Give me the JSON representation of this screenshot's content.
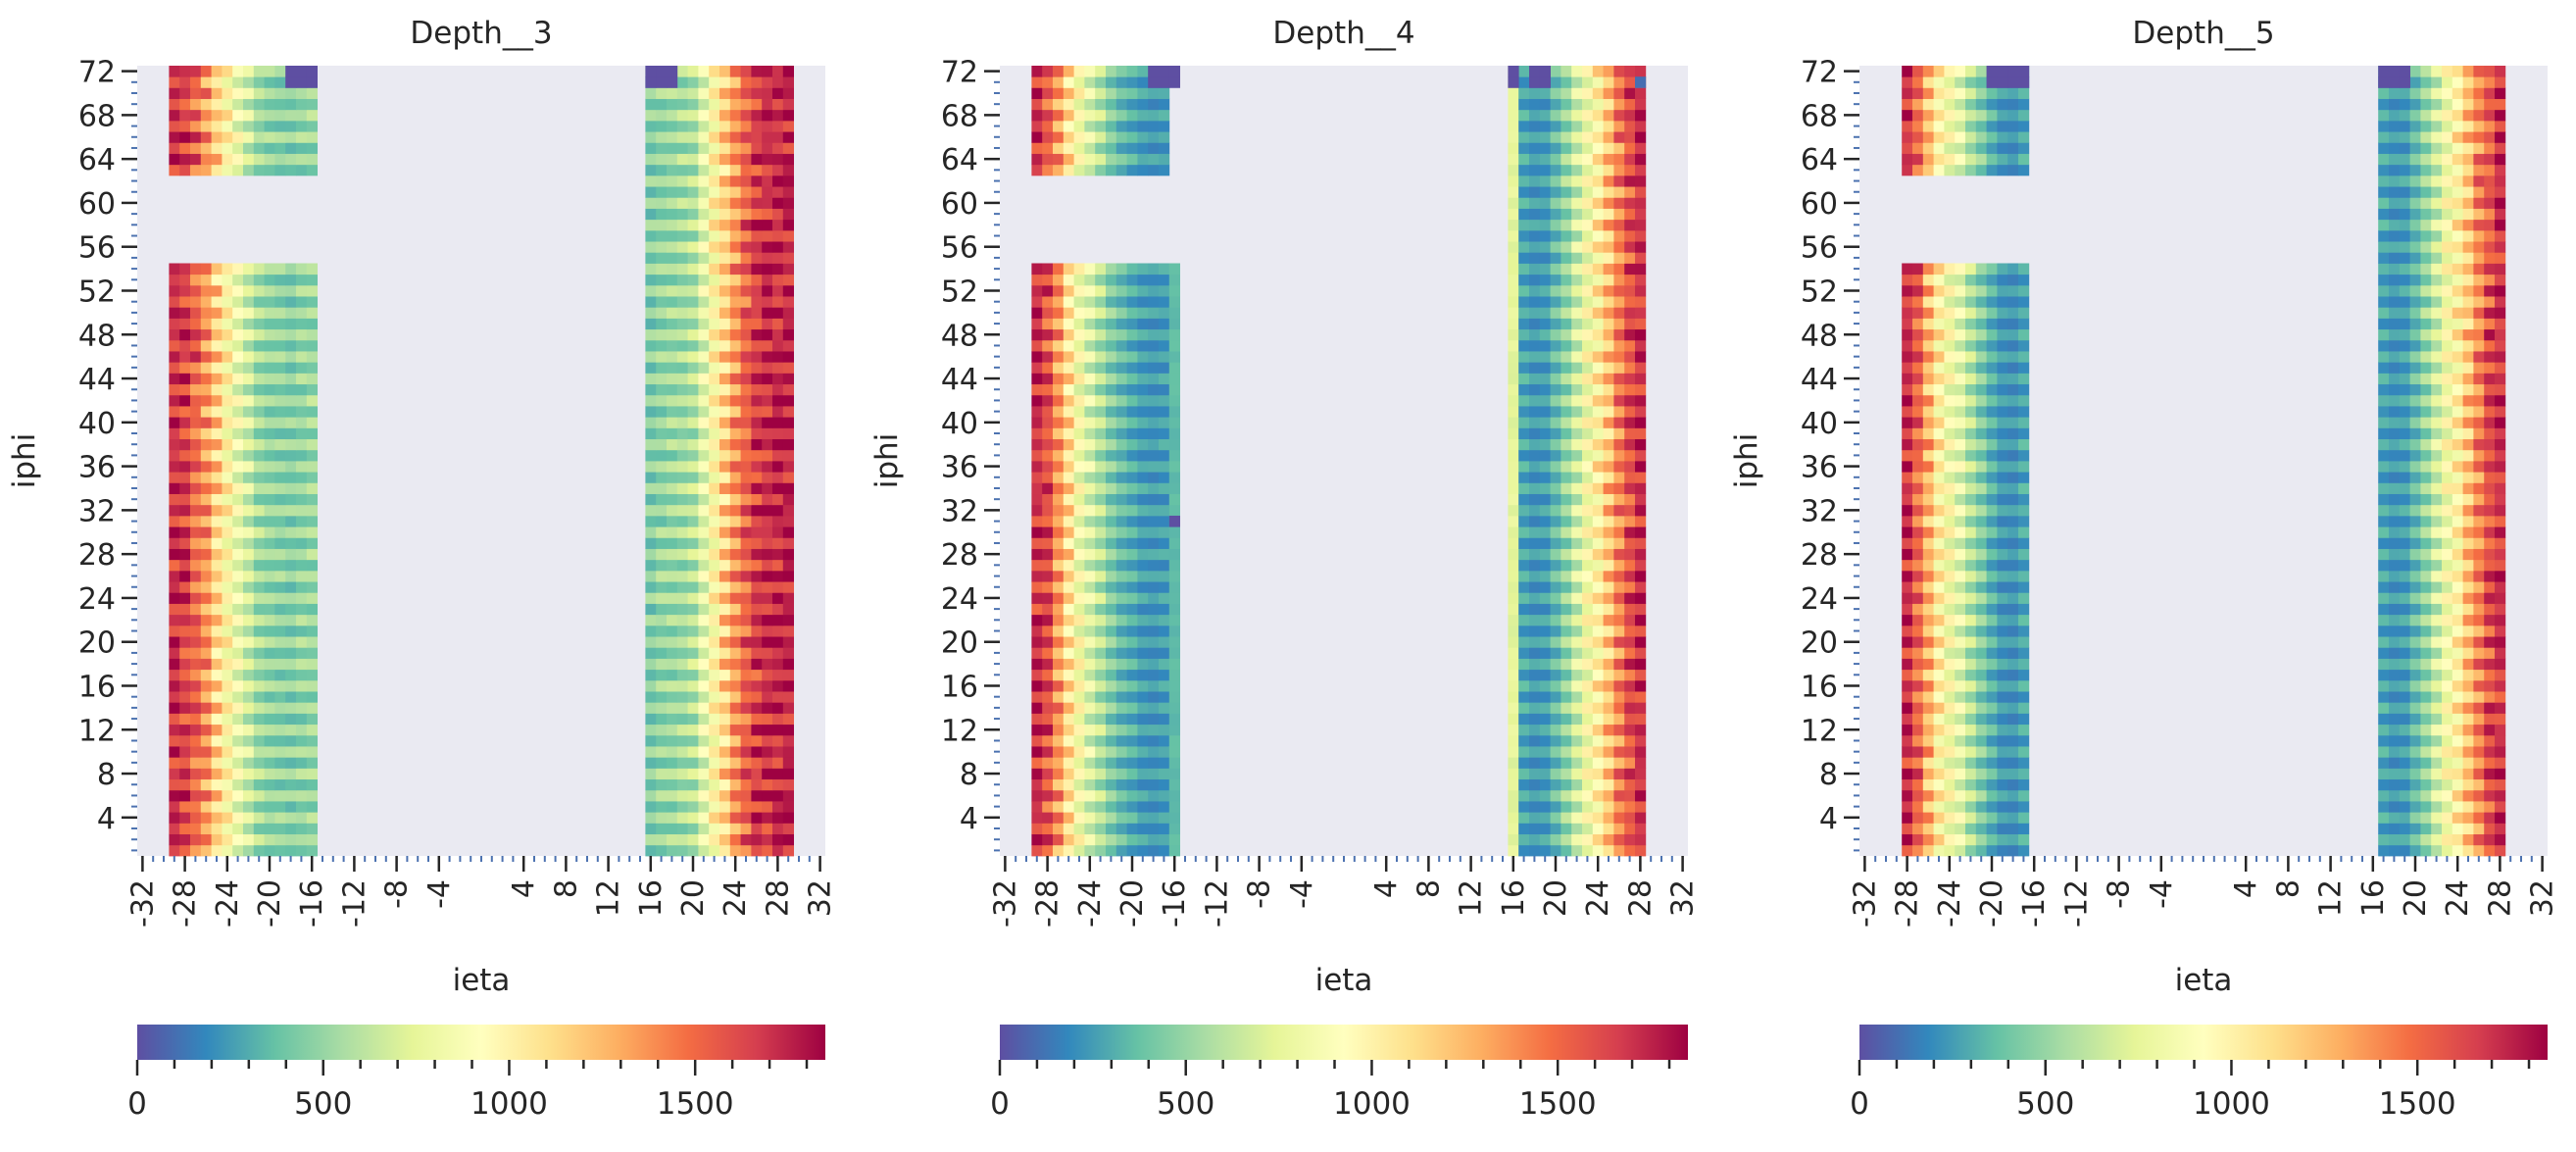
{
  "colors": {
    "background": "#eaeaf2",
    "colormap": [
      "#5e4fa2",
      "#3288bd",
      "#66c2a5",
      "#abdda4",
      "#e6f598",
      "#ffffbf",
      "#fee08b",
      "#fdae61",
      "#f46d43",
      "#d53e4f",
      "#9e0142"
    ]
  },
  "chart_data": [
    {
      "type": "heatmap",
      "title": "Depth__3",
      "xlabel": "ieta",
      "ylabel": "iphi",
      "x_ticks": [
        "-32",
        "-28",
        "-24",
        "-20",
        "-16",
        "-12",
        "-8",
        "-4",
        "4",
        "8",
        "12",
        "16",
        "20",
        "24",
        "28",
        "32"
      ],
      "y_ticks": [
        "72",
        "68",
        "64",
        "60",
        "56",
        "52",
        "48",
        "44",
        "40",
        "36",
        "32",
        "28",
        "24",
        "20",
        "16",
        "12",
        "8",
        "4"
      ],
      "ieta_range": [
        -32,
        32
      ],
      "iphi_range": [
        1,
        72
      ],
      "colorbar": {
        "range": [
          0,
          1850
        ],
        "ticks": [
          "0",
          "500",
          "1000",
          "1500"
        ]
      },
      "regions": [
        {
          "side": "minus",
          "ieta_from": -29,
          "ieta_to": -16,
          "iphi_from": 1,
          "iphi_to": 54,
          "profile": [
            1800,
            1750,
            1650,
            1500,
            1300,
            1100,
            950,
            800,
            650,
            600,
            580,
            560,
            600,
            620
          ],
          "odd_rows_empty": true
        },
        {
          "side": "minus",
          "ieta_from": -29,
          "ieta_to": -16,
          "iphi_from": 63,
          "iphi_to": 72,
          "profile": [
            1800,
            1750,
            1650,
            1500,
            1300,
            1100,
            950,
            800,
            650,
            600,
            580,
            560,
            600,
            620
          ],
          "odd_rows_empty": true
        },
        {
          "side": "plus",
          "ieta_from": 16,
          "ieta_to": 29,
          "iphi_from": 1,
          "iphi_to": 72,
          "profile": [
            550,
            600,
            620,
            650,
            700,
            900,
            1100,
            1300,
            1500,
            1650,
            1750,
            1800,
            1820,
            1850
          ],
          "odd_rows_empty": true
        }
      ],
      "dead_cells": [
        {
          "ieta_from": -18,
          "ieta_to": -16,
          "iphi_from": 71,
          "iphi_to": 72,
          "value": 0
        },
        {
          "ieta_from": 16,
          "ieta_to": 18,
          "iphi_from": 71,
          "iphi_to": 72,
          "value": 0
        }
      ]
    },
    {
      "type": "heatmap",
      "title": "Depth__4",
      "xlabel": "ieta",
      "ylabel": "iphi",
      "x_ticks": [
        "-32",
        "-28",
        "-24",
        "-20",
        "-16",
        "-12",
        "-8",
        "-4",
        "4",
        "8",
        "12",
        "16",
        "20",
        "24",
        "28",
        "32"
      ],
      "y_ticks": [
        "72",
        "68",
        "64",
        "60",
        "56",
        "52",
        "48",
        "44",
        "40",
        "36",
        "32",
        "28",
        "24",
        "20",
        "16",
        "12",
        "8",
        "4"
      ],
      "ieta_range": [
        -32,
        32
      ],
      "iphi_range": [
        1,
        72
      ],
      "colorbar": {
        "range": [
          0,
          1850
        ],
        "ticks": [
          "0",
          "500",
          "1000",
          "1500"
        ]
      },
      "regions": [
        {
          "side": "minus",
          "ieta_from": -29,
          "ieta_to": -17,
          "iphi_from": 1,
          "iphi_to": 54,
          "profile": [
            1800,
            1700,
            1500,
            1250,
            1000,
            850,
            700,
            550,
            450,
            380,
            320,
            300,
            320
          ],
          "odd_rows_empty": true
        },
        {
          "side": "minus",
          "ieta_from": -29,
          "ieta_to": -17,
          "iphi_from": 63,
          "iphi_to": 72,
          "profile": [
            1800,
            1700,
            1500,
            1250,
            1000,
            850,
            700,
            550,
            450,
            380,
            320,
            300,
            320
          ],
          "odd_rows_empty": true
        },
        {
          "side": "minus",
          "ieta_from": -16,
          "ieta_to": -16,
          "iphi_from": 1,
          "iphi_to": 54,
          "profile": [
            350
          ],
          "odd_rows_empty": false
        },
        {
          "side": "plus",
          "ieta_from": 16,
          "ieta_to": 16,
          "iphi_from": 1,
          "iphi_to": 72,
          "profile": [
            750
          ],
          "odd_rows_empty": false
        },
        {
          "side": "plus",
          "ieta_from": 17,
          "ieta_to": 28,
          "iphi_from": 1,
          "iphi_to": 72,
          "profile": [
            350,
            300,
            320,
            450,
            600,
            800,
            1000,
            1150,
            1350,
            1550,
            1700,
            1800
          ],
          "odd_rows_empty": true
        }
      ],
      "dead_cells": [
        {
          "ieta_from": -18,
          "ieta_to": -17,
          "iphi_from": 71,
          "iphi_to": 72,
          "value": 0
        },
        {
          "ieta_from": -16,
          "ieta_to": -16,
          "iphi_from": 71,
          "iphi_to": 72,
          "value": 0
        },
        {
          "ieta_from": -16,
          "ieta_to": -16,
          "iphi_from": 31,
          "iphi_to": 31,
          "value": 0
        },
        {
          "ieta_from": 16,
          "ieta_to": 16,
          "iphi_from": 71,
          "iphi_to": 72,
          "value": 0
        },
        {
          "ieta_from": 18,
          "ieta_to": 19,
          "iphi_from": 71,
          "iphi_to": 72,
          "value": 0
        },
        {
          "ieta_from": 28,
          "ieta_to": 28,
          "iphi_from": 71,
          "iphi_to": 71,
          "value": 100
        }
      ]
    },
    {
      "type": "heatmap",
      "title": "Depth__5",
      "xlabel": "ieta",
      "ylabel": "iphi",
      "x_ticks": [
        "-32",
        "-28",
        "-24",
        "-20",
        "-16",
        "-12",
        "-8",
        "-4",
        "4",
        "8",
        "12",
        "16",
        "20",
        "24",
        "28",
        "32"
      ],
      "y_ticks": [
        "72",
        "68",
        "64",
        "60",
        "56",
        "52",
        "48",
        "44",
        "40",
        "36",
        "32",
        "28",
        "24",
        "20",
        "16",
        "12",
        "8",
        "4"
      ],
      "ieta_range": [
        -32,
        32
      ],
      "iphi_range": [
        1,
        72
      ],
      "colorbar": {
        "range": [
          0,
          1850
        ],
        "ticks": [
          "0",
          "500",
          "1000",
          "1500"
        ]
      },
      "regions": [
        {
          "side": "minus",
          "ieta_from": -28,
          "ieta_to": -17,
          "iphi_from": 1,
          "iphi_to": 54,
          "profile": [
            1800,
            1650,
            1400,
            1150,
            1000,
            900,
            700,
            550,
            400,
            300,
            280,
            350
          ],
          "odd_rows_empty": true
        },
        {
          "side": "minus",
          "ieta_from": -28,
          "ieta_to": -17,
          "iphi_from": 63,
          "iphi_to": 72,
          "profile": [
            1800,
            1650,
            1400,
            1150,
            1000,
            900,
            700,
            550,
            400,
            300,
            280,
            350
          ],
          "odd_rows_empty": true
        },
        {
          "side": "plus",
          "ieta_from": 17,
          "ieta_to": 28,
          "iphi_from": 1,
          "iphi_to": 72,
          "profile": [
            350,
            300,
            320,
            450,
            600,
            800,
            1000,
            1150,
            1350,
            1550,
            1700,
            1800
          ],
          "odd_rows_empty": true
        }
      ],
      "dead_cells": [
        {
          "ieta_from": -20,
          "ieta_to": -17,
          "iphi_from": 71,
          "iphi_to": 72,
          "value": 0
        },
        {
          "ieta_from": 17,
          "ieta_to": 19,
          "iphi_from": 71,
          "iphi_to": 72,
          "value": 0
        }
      ]
    }
  ]
}
